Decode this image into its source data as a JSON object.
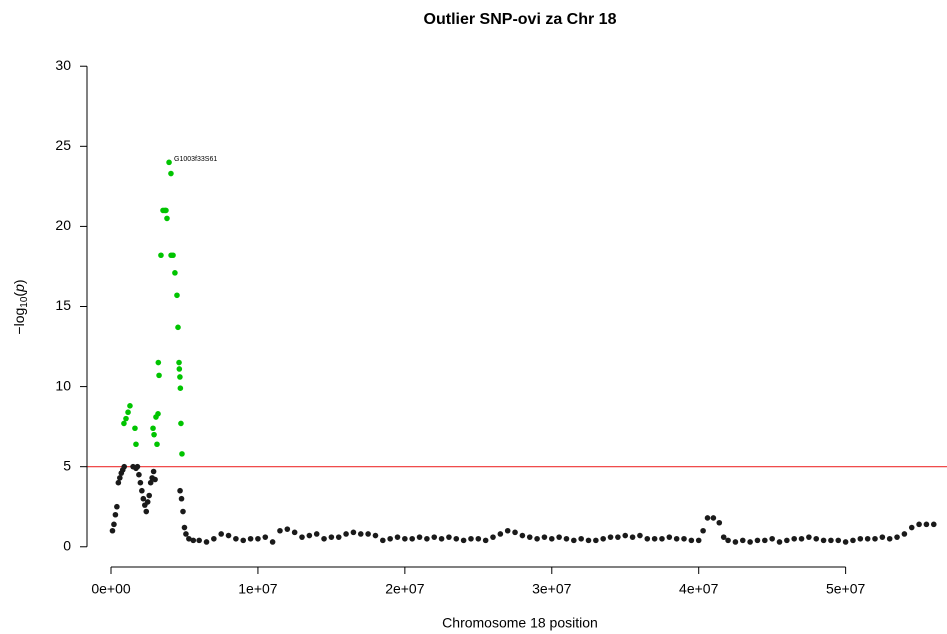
{
  "chart_data": {
    "type": "scatter",
    "title": "Outlier SNP-ovi za Chr 18",
    "xlabel": "Chromosome 18 position",
    "ylabel": [
      "−log",
      "10",
      "(",
      "p",
      ")"
    ],
    "annotation": "G1003f33S61",
    "hline": {
      "value": 5,
      "color": "#ee3333"
    },
    "xlim": [
      -1600000,
      56900000
    ],
    "ylim": [
      -1.2,
      31.2
    ],
    "xticks": [
      {
        "value": 0,
        "label": "0e+00"
      },
      {
        "value": 10000000,
        "label": "1e+07"
      },
      {
        "value": 20000000,
        "label": "2e+07"
      },
      {
        "value": 30000000,
        "label": "3e+07"
      },
      {
        "value": 40000000,
        "label": "4e+07"
      },
      {
        "value": 50000000,
        "label": "5e+07"
      }
    ],
    "yticks": [
      0,
      5,
      10,
      15,
      20,
      25,
      30
    ],
    "series": [
      {
        "color": "#1a1a1a",
        "x": [
          100000,
          200000,
          300000,
          400000,
          500000,
          600000,
          700000,
          800000,
          900000,
          1500000,
          1700000,
          1800000,
          1900000,
          2000000,
          2100000,
          2200000,
          2300000,
          2400000,
          2500000,
          2600000,
          2700000,
          2800000,
          2900000,
          3000000,
          4700000,
          4800000,
          4900000,
          5000000,
          5100000,
          5300000,
          5600000,
          6000000,
          6500000,
          7000000,
          7500000,
          8000000,
          8500000,
          9000000,
          9500000,
          10000000,
          10500000,
          11000000,
          11500000,
          12000000,
          12500000,
          13000000,
          13500000,
          14000000,
          14500000,
          15000000,
          15500000,
          16000000,
          16500000,
          17000000,
          17500000,
          18000000,
          18500000,
          19000000,
          19500000,
          20000000,
          20500000,
          21000000,
          21500000,
          22000000,
          22500000,
          23000000,
          23500000,
          24000000,
          24500000,
          25000000,
          25500000,
          26000000,
          26500000,
          27000000,
          27500000,
          28000000,
          28500000,
          29000000,
          29500000,
          30000000,
          30500000,
          31000000,
          31500000,
          32000000,
          32500000,
          33000000,
          33500000,
          34000000,
          34500000,
          35000000,
          35500000,
          36000000,
          36500000,
          37000000,
          37500000,
          38000000,
          38500000,
          39000000,
          39500000,
          40000000,
          40300000,
          40600000,
          41000000,
          41400000,
          41700000,
          42000000,
          42500000,
          43000000,
          43500000,
          44000000,
          44500000,
          45000000,
          45500000,
          46000000,
          46500000,
          47000000,
          47500000,
          48000000,
          48500000,
          49000000,
          49500000,
          50000000,
          50500000,
          51000000,
          51500000,
          52000000,
          52500000,
          53000000,
          53500000,
          54000000,
          54500000,
          55000000,
          55500000,
          56000000
        ],
        "values": [
          1.0,
          1.4,
          2.0,
          2.5,
          4.0,
          4.3,
          4.6,
          4.8,
          5.0,
          5.0,
          4.9,
          5.0,
          4.5,
          4.0,
          3.5,
          3.0,
          2.6,
          2.2,
          2.8,
          3.2,
          4.0,
          4.3,
          4.7,
          4.2,
          3.5,
          3.0,
          2.2,
          1.2,
          0.8,
          0.5,
          0.4,
          0.4,
          0.3,
          0.5,
          0.8,
          0.7,
          0.5,
          0.4,
          0.5,
          0.5,
          0.6,
          0.3,
          1.0,
          1.1,
          0.9,
          0.6,
          0.7,
          0.8,
          0.5,
          0.6,
          0.6,
          0.8,
          0.9,
          0.8,
          0.8,
          0.7,
          0.4,
          0.5,
          0.6,
          0.5,
          0.5,
          0.6,
          0.5,
          0.6,
          0.5,
          0.6,
          0.5,
          0.4,
          0.5,
          0.5,
          0.4,
          0.6,
          0.8,
          1.0,
          0.9,
          0.7,
          0.6,
          0.5,
          0.6,
          0.5,
          0.6,
          0.5,
          0.4,
          0.5,
          0.4,
          0.4,
          0.5,
          0.6,
          0.6,
          0.7,
          0.6,
          0.7,
          0.5,
          0.5,
          0.5,
          0.6,
          0.5,
          0.5,
          0.4,
          0.4,
          1.0,
          1.8,
          1.8,
          1.5,
          0.6,
          0.4,
          0.3,
          0.4,
          0.3,
          0.4,
          0.4,
          0.5,
          0.3,
          0.4,
          0.5,
          0.5,
          0.6,
          0.5,
          0.4,
          0.4,
          0.4,
          0.3,
          0.4,
          0.5,
          0.5,
          0.5,
          0.6,
          0.5,
          0.6,
          0.8,
          1.2,
          1.4,
          1.4,
          1.4
        ]
      },
      {
        "color": "#00c400",
        "x": [
          880000,
          1020000,
          1160000,
          1290000,
          1630000,
          1700000,
          2860000,
          2930000,
          3060000,
          3130000,
          3200000,
          3220000,
          3270000,
          3400000,
          3540000,
          3670000,
          3740000,
          3810000,
          3950000,
          4080000,
          4090000,
          4220000,
          4350000,
          4490000,
          4560000,
          4630000,
          4650000,
          4690000,
          4720000,
          4760000,
          4830000
        ],
        "values": [
          7.7,
          8.0,
          8.4,
          8.8,
          7.4,
          6.4,
          7.4,
          7.0,
          8.1,
          6.4,
          8.3,
          11.5,
          10.7,
          18.2,
          21.0,
          21.0,
          21.0,
          20.5,
          24.0,
          23.3,
          18.2,
          18.2,
          17.1,
          15.7,
          13.7,
          11.5,
          11.1,
          10.6,
          9.9,
          7.7,
          5.8
        ]
      }
    ]
  }
}
